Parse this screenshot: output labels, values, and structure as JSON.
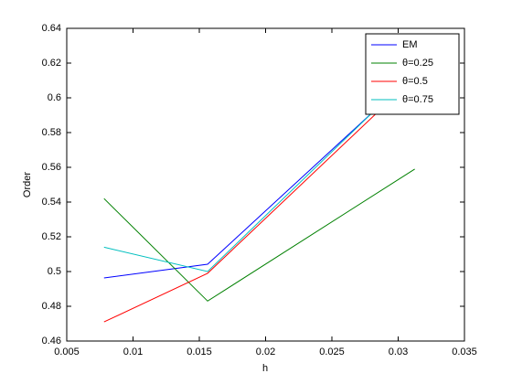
{
  "chart_data": {
    "type": "line",
    "x_label": "h",
    "y_label": "Order",
    "x": [
      0.0078125,
      0.015625,
      0.03125
    ],
    "series": [
      {
        "name": "EM",
        "color": "#0000ff",
        "values": [
          0.4963,
          0.5042,
          0.614
        ]
      },
      {
        "name": "θ=0.25",
        "color": "#008000",
        "values": [
          0.542,
          0.483,
          0.559
        ]
      },
      {
        "name": "θ=0.5",
        "color": "#ff0000",
        "values": [
          0.471,
          0.499,
          0.612
        ]
      },
      {
        "name": "θ=0.75",
        "color": "#00bfbf",
        "values": [
          0.514,
          0.5,
          0.615
        ]
      }
    ],
    "xlim": [
      0.005,
      0.035
    ],
    "xticks": [
      0.005,
      0.01,
      0.015,
      0.02,
      0.025,
      0.03,
      0.035
    ],
    "ylim": [
      0.46,
      0.64
    ],
    "yticks": [
      0.46,
      0.48,
      0.5,
      0.52,
      0.54,
      0.56,
      0.58,
      0.6,
      0.62,
      0.64
    ],
    "grid": false,
    "legend": "top-right"
  }
}
